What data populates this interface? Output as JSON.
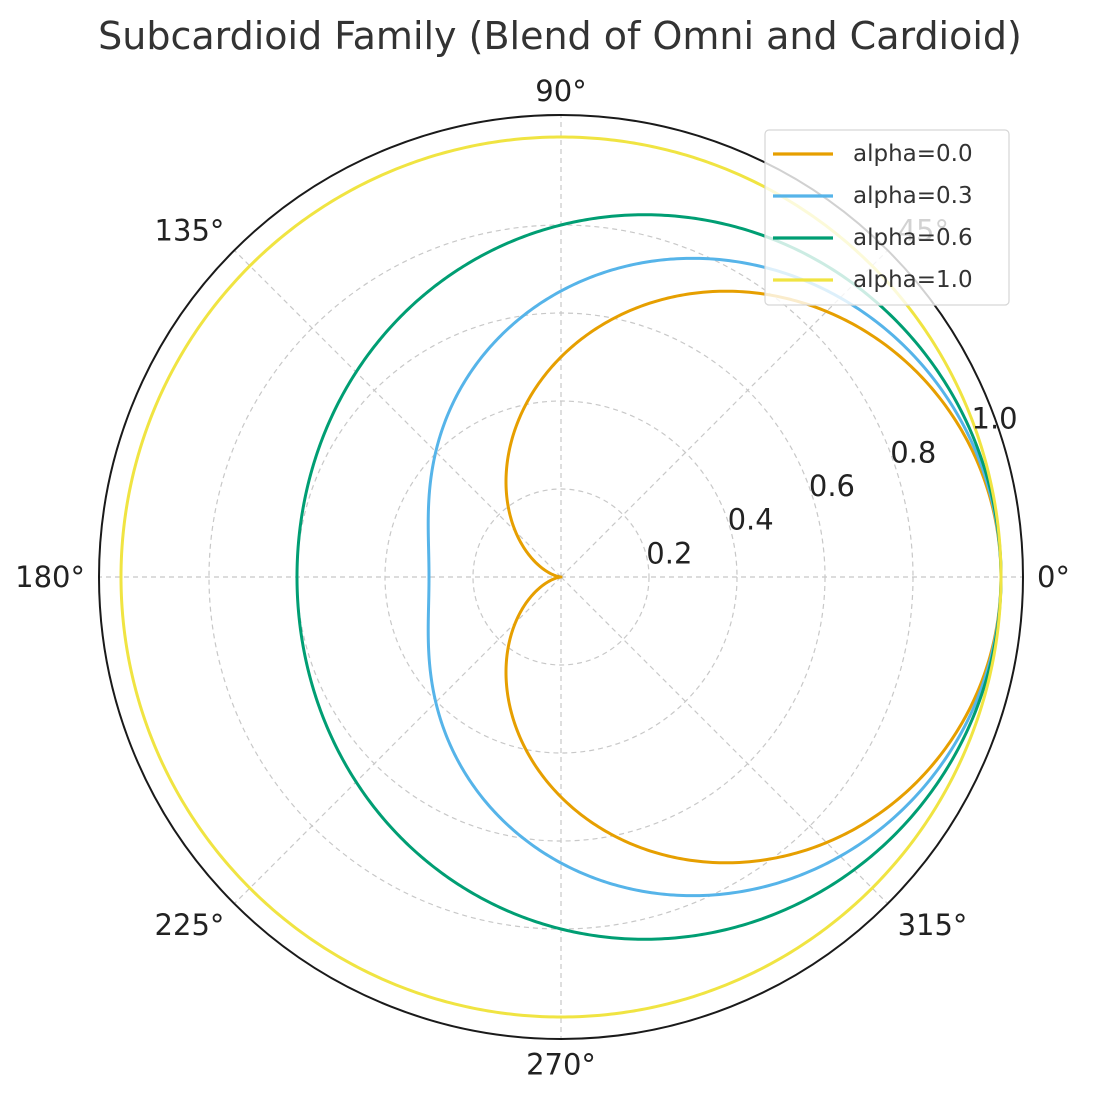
{
  "chart_data": {
    "type": "line",
    "polar": true,
    "title": "Subcardioid Family (Blend of Omni and Cardioid)",
    "formula_note": "",
    "theta_ticks": [
      {
        "deg": 0,
        "label": "0°"
      },
      {
        "deg": 45,
        "label": "45°"
      },
      {
        "deg": 90,
        "label": "90°"
      },
      {
        "deg": 135,
        "label": "135°"
      },
      {
        "deg": 180,
        "label": "180°"
      },
      {
        "deg": 225,
        "label": "225°"
      },
      {
        "deg": 270,
        "label": "270°"
      },
      {
        "deg": 315,
        "label": "315°"
      }
    ],
    "r_ticks": [
      {
        "value": 0.2,
        "label": "0.2"
      },
      {
        "value": 0.4,
        "label": "0.4"
      },
      {
        "value": 0.6,
        "label": "0.6"
      },
      {
        "value": 0.8,
        "label": "0.8"
      },
      {
        "value": 1.0,
        "label": "1.0"
      }
    ],
    "rlim": [
      0,
      1.05
    ],
    "grid": true,
    "legend_position": "upper right",
    "series": [
      {
        "name": "alpha=0.0",
        "alpha": 0.0,
        "color": "#E69F00",
        "r": [
          1.0,
          0.854,
          0.5,
          0.146,
          0.0,
          0.146,
          0.5,
          0.854,
          1.0
        ]
      },
      {
        "name": "alpha=0.3",
        "alpha": 0.3,
        "color": "#56B4E9",
        "r": [
          1.0,
          0.898,
          0.65,
          0.402,
          0.3,
          0.402,
          0.65,
          0.898,
          1.0
        ]
      },
      {
        "name": "alpha=0.6",
        "alpha": 0.6,
        "color": "#009E73",
        "r": [
          1.0,
          0.941,
          0.8,
          0.659,
          0.6,
          0.659,
          0.8,
          0.941,
          1.0
        ]
      },
      {
        "name": "alpha=1.0",
        "alpha": 1.0,
        "color": "#F0E442",
        "r": [
          1.0,
          1.0,
          1.0,
          1.0,
          1.0,
          1.0,
          1.0,
          1.0,
          1.0
        ]
      }
    ],
    "theta_deg": [
      0,
      45,
      90,
      135,
      180,
      225,
      270,
      315,
      360
    ]
  }
}
